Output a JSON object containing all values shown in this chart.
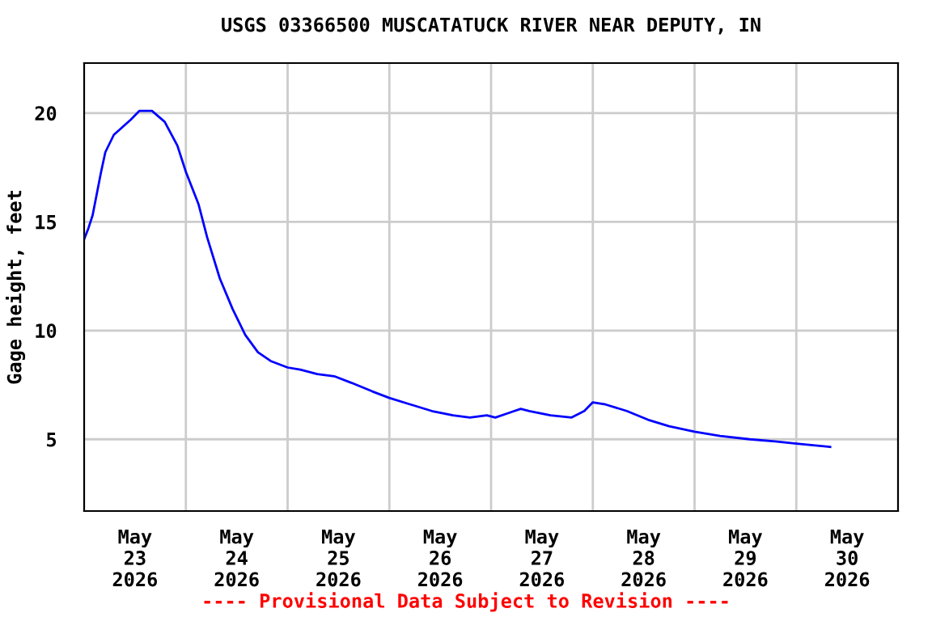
{
  "chart_data": {
    "type": "line",
    "title": "USGS 03366500 MUSCATATUCK RIVER NEAR DEPUTY, IN",
    "ylabel": "Gage height, feet",
    "annotations": [
      "---- Provisional Data Subject to Revision ----"
    ],
    "x": [
      "2026-05-23T00:00",
      "2026-05-23T01:00",
      "2026-05-23T02:00",
      "2026-05-23T04:00",
      "2026-05-23T05:00",
      "2026-05-23T07:00",
      "2026-05-23T11:00",
      "2026-05-23T13:00",
      "2026-05-23T16:00",
      "2026-05-23T19:00",
      "2026-05-23T22:00",
      "2026-05-24T00:00",
      "2026-05-24T03:00",
      "2026-05-24T05:00",
      "2026-05-24T08:00",
      "2026-05-24T11:00",
      "2026-05-24T14:00",
      "2026-05-24T17:00",
      "2026-05-24T20:00",
      "2026-05-25T00:00",
      "2026-05-25T03:00",
      "2026-05-25T07:00",
      "2026-05-25T11:00",
      "2026-05-25T15:00",
      "2026-05-25T20:00",
      "2026-05-26T00:00",
      "2026-05-26T05:00",
      "2026-05-26T10:00",
      "2026-05-26T15:00",
      "2026-05-26T19:00",
      "2026-05-26T23:00",
      "2026-05-27T01:00",
      "2026-05-27T04:00",
      "2026-05-27T07:00",
      "2026-05-27T09:00",
      "2026-05-27T14:00",
      "2026-05-27T19:00",
      "2026-05-27T22:00",
      "2026-05-28T00:00",
      "2026-05-28T03:00",
      "2026-05-28T08:00",
      "2026-05-28T13:00",
      "2026-05-28T18:00",
      "2026-05-29T00:00",
      "2026-05-29T06:00",
      "2026-05-29T13:00",
      "2026-05-29T19:00",
      "2026-05-30T00:00",
      "2026-05-30T08:00"
    ],
    "series": [
      {
        "color": "#0000ff",
        "values": [
          14.2,
          14.7,
          15.3,
          17.3,
          18.2,
          19.0,
          19.7,
          20.1,
          20.1,
          19.6,
          18.5,
          17.3,
          15.8,
          14.3,
          12.4,
          11.0,
          9.8,
          9.0,
          8.6,
          8.3,
          8.2,
          8.0,
          7.9,
          7.6,
          7.2,
          6.9,
          6.6,
          6.3,
          6.1,
          6.0,
          6.1,
          6.0,
          6.2,
          6.4,
          6.3,
          6.1,
          6.0,
          6.3,
          6.7,
          6.6,
          6.3,
          5.9,
          5.6,
          5.35,
          5.15,
          5.0,
          4.9,
          4.8,
          4.65
        ]
      }
    ],
    "xlim": [
      "2026-05-23T00:00",
      "2026-05-31T00:00"
    ],
    "xticks": [
      {
        "value": "2026-05-24T00:00",
        "label": null
      },
      {
        "value": "2026-05-25T00:00",
        "label": null
      },
      {
        "value": "2026-05-26T00:00",
        "label": null
      },
      {
        "value": "2026-05-27T00:00",
        "label": null
      },
      {
        "value": "2026-05-28T00:00",
        "label": null
      },
      {
        "value": "2026-05-29T00:00",
        "label": null
      },
      {
        "value": "2026-05-30T00:00",
        "label": null
      },
      {
        "value": "2026-05-23T12:00",
        "label": "May\n23\n2026"
      },
      {
        "value": "2026-05-24T12:00",
        "label": "May\n24\n2026"
      },
      {
        "value": "2026-05-25T12:00",
        "label": "May\n25\n2026"
      },
      {
        "value": "2026-05-26T12:00",
        "label": "May\n26\n2026"
      },
      {
        "value": "2026-05-27T12:00",
        "label": "May\n27\n2026"
      },
      {
        "value": "2026-05-28T12:00",
        "label": "May\n28\n2026"
      },
      {
        "value": "2026-05-29T12:00",
        "label": "May\n29\n2026"
      },
      {
        "value": "2026-05-30T12:00",
        "label": "May\n30\n2026"
      }
    ],
    "ylim": [
      1.7,
      22.3
    ],
    "yticks": [
      5,
      10,
      15,
      20
    ],
    "grid": true,
    "line_style": "solid",
    "marker": "none",
    "legend": false
  }
}
